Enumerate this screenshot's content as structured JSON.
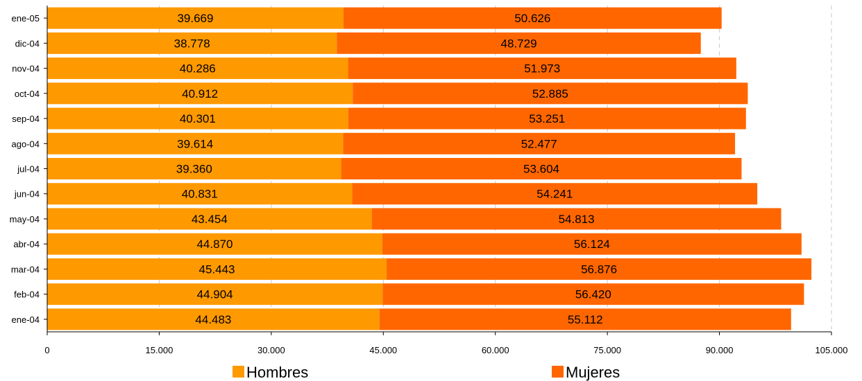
{
  "chart_data": {
    "type": "bar",
    "orientation": "horizontal",
    "stacked": true,
    "categories": [
      "ene-04",
      "feb-04",
      "mar-04",
      "abr-04",
      "may-04",
      "jun-04",
      "jul-04",
      "ago-04",
      "sep-04",
      "oct-04",
      "nov-04",
      "dic-04",
      "ene-05"
    ],
    "series": [
      {
        "name": "Hombres",
        "color": "#ff9900",
        "values": [
          44483,
          44904,
          45443,
          44870,
          43454,
          40831,
          39360,
          39614,
          40301,
          40912,
          40286,
          38778,
          39669
        ],
        "labels": [
          "44.483",
          "44.904",
          "45.443",
          "44.870",
          "43.454",
          "40.831",
          "39.360",
          "39.614",
          "40.301",
          "40.912",
          "40.286",
          "38.778",
          "39.669"
        ]
      },
      {
        "name": "Mujeres",
        "color": "#ff6600",
        "values": [
          55112,
          56420,
          56876,
          56124,
          54813,
          54241,
          53604,
          52477,
          53251,
          52885,
          51973,
          48729,
          50626
        ],
        "labels": [
          "55.112",
          "56.420",
          "56.876",
          "56.124",
          "54.813",
          "54.241",
          "53.604",
          "52.477",
          "53.251",
          "52.885",
          "51.973",
          "48.729",
          "50.626"
        ]
      }
    ],
    "xlim": [
      0,
      105000
    ],
    "xticks": [
      0,
      15000,
      30000,
      45000,
      60000,
      75000,
      90000,
      105000
    ],
    "xtick_labels": [
      "0",
      "15.000",
      "30.000",
      "45.000",
      "60.000",
      "75.000",
      "90.000",
      "105.000"
    ],
    "title": "",
    "xlabel": "",
    "ylabel": "",
    "grid": "vertical dashed",
    "legend_position": "bottom"
  }
}
